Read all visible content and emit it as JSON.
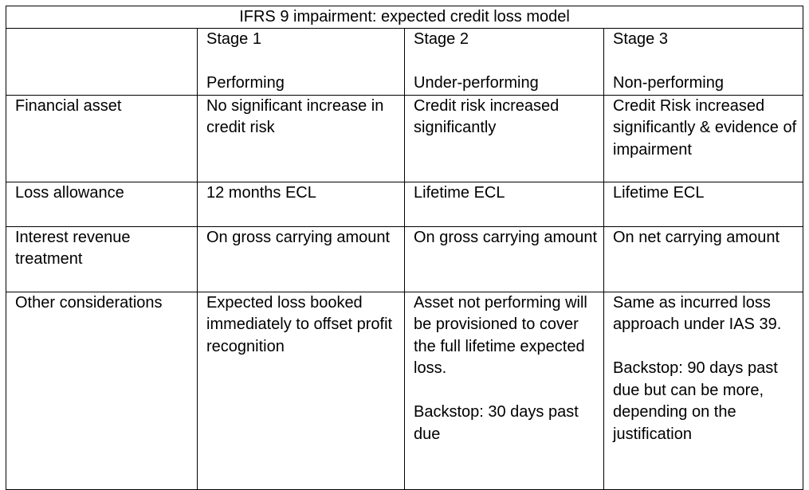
{
  "table": {
    "title": "IFRS 9 impairment: expected credit loss model",
    "header": [
      [],
      [
        "Stage 1",
        "Performing"
      ],
      [
        "Stage 2",
        "Under-performing"
      ],
      [
        "Stage 3",
        "Non-performing"
      ]
    ],
    "rows": [
      [
        [
          "Financial asset"
        ],
        [
          "No significant increase in credit risk"
        ],
        [
          "Credit risk increased significantly"
        ],
        [
          "Credit Risk increased significantly & evidence of impairment"
        ]
      ],
      [
        [
          "Loss allowance"
        ],
        [
          "12 months ECL"
        ],
        [
          "Lifetime ECL"
        ],
        [
          "Lifetime ECL"
        ]
      ],
      [
        [
          "Interest revenue treatment"
        ],
        [
          "On gross carrying amount"
        ],
        [
          "On gross carrying amount"
        ],
        [
          "On net carrying amount"
        ]
      ],
      [
        [
          "Other considerations"
        ],
        [
          "Expected loss booked immediately to offset profit recognition"
        ],
        [
          "Asset not performing will be provisioned to cover the full lifetime expected loss.",
          "Backstop: 30 days past due"
        ],
        [
          "Same as incurred loss approach under IAS 39.",
          "Backstop: 90 days past due but can be more, depending on the justification"
        ]
      ]
    ]
  }
}
